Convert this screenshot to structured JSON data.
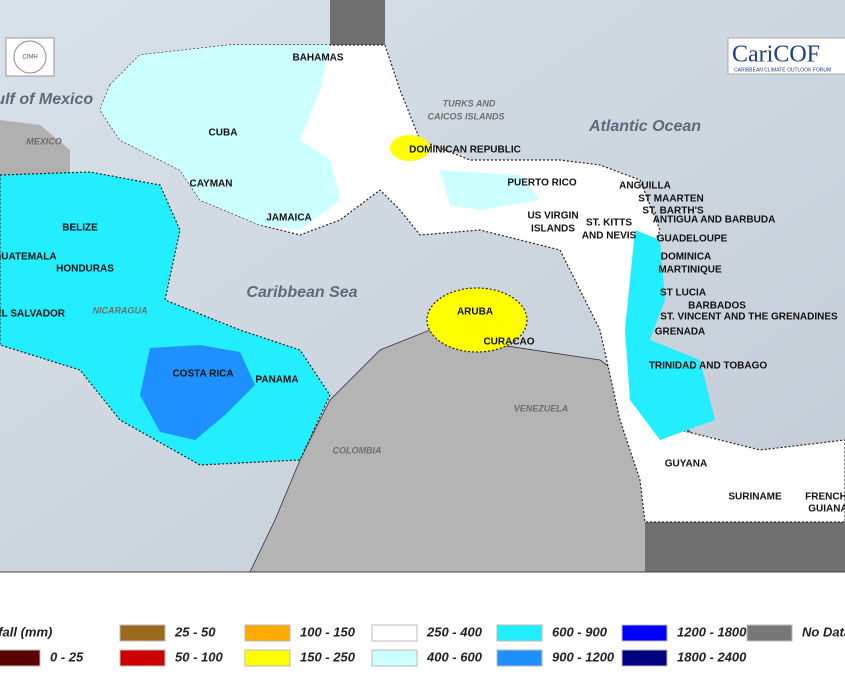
{
  "map": {
    "logo_left": "CIMH",
    "logo_title": "CariCOF",
    "logo_subtitle": "CARIBBEAN CLIMATE OUTLOOK FORUM",
    "water_labels": [
      "Gulf of Mexico",
      "Atlantic Ocean",
      "Caribbean Sea"
    ],
    "gray_labels": [
      "MEXICO",
      "TURKS AND",
      "CAICOS ISLANDS",
      "NICARAGUA",
      "VENEZUELA",
      "COLOMBIA"
    ],
    "labels": [
      "BAHAMAS",
      "CUBA",
      "CAYMAN",
      "JAMAICA",
      "DOMINICAN REPUBLIC",
      "PUERTO RICO",
      "ANGUILLA",
      "ST MAARTEN",
      "ST. BARTH'S",
      "ANTIGUA AND BARBUDA",
      "US VIRGIN",
      "ISLANDS",
      "ST. KITTS",
      "AND NEVIS",
      "GUADELOUPE",
      "DOMINICA",
      "MARTINIQUE",
      "ST LUCIA",
      "BARBADOS",
      "ST. VINCENT AND THE GRENADINES",
      "GRENADA",
      "TRINIDAD AND TOBAGO",
      "BELIZE",
      "GUATEMALA",
      "HONDURAS",
      "EL SALVADOR",
      "COSTA RICA",
      "PANAMA",
      "ARUBA",
      "CURACAO",
      "GUYANA",
      "SURINAME",
      "FRENCH",
      "GUIANA"
    ]
  },
  "legend": {
    "title": "Rainfall (mm)",
    "items": [
      {
        "label": "0 - 25",
        "color": "#5a0000"
      },
      {
        "label": "25 - 50",
        "color": "#9c6a1c"
      },
      {
        "label": "50 - 100",
        "color": "#cc0000"
      },
      {
        "label": "100 - 150",
        "color": "#ffaa00"
      },
      {
        "label": "150 - 250",
        "color": "#ffff00"
      },
      {
        "label": "250 - 400",
        "color": "#ffffff"
      },
      {
        "label": "400 - 600",
        "color": "#ccffff"
      },
      {
        "label": "600 - 900",
        "color": "#22eeff"
      },
      {
        "label": "900 - 1200",
        "color": "#1e90ff"
      },
      {
        "label": "1200 - 1800",
        "color": "#0000ff"
      },
      {
        "label": "1800 - 2400",
        "color": "#000080"
      },
      {
        "label": "No Data",
        "color": "#777777"
      }
    ]
  }
}
